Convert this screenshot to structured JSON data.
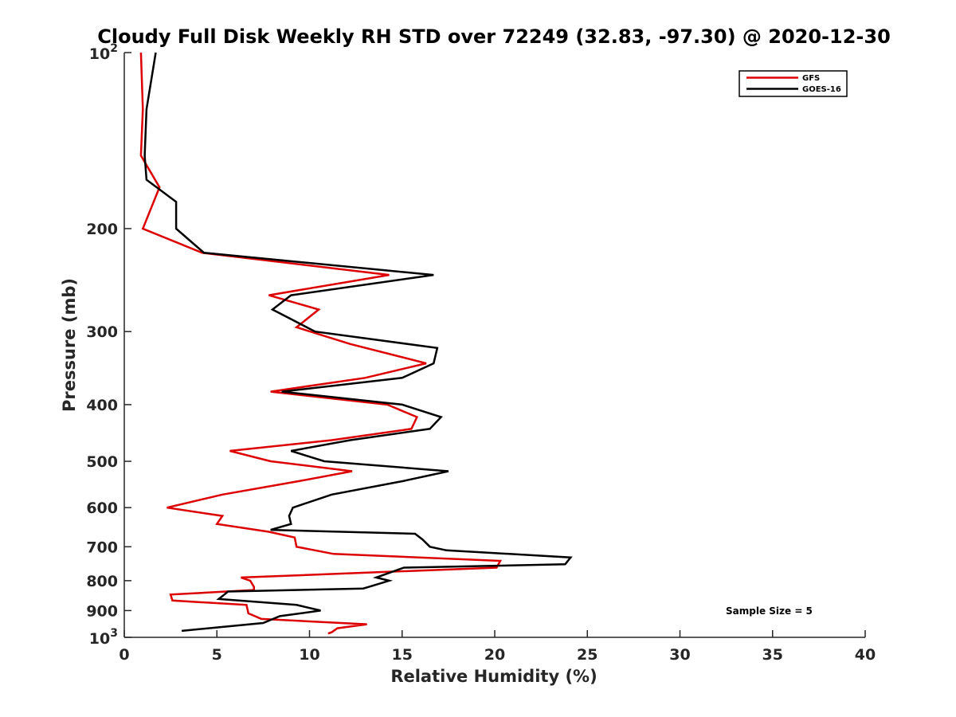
{
  "chart_data": {
    "type": "line",
    "title": "Cloudy Full Disk Weekly RH STD over 72249 (32.83, -97.30) @ 2020-12-30",
    "xlabel": "Relative Humidity (%)",
    "ylabel": "Pressure (mb)",
    "xlim": [
      0,
      40
    ],
    "ylim": [
      1000,
      100
    ],
    "yscale": "log",
    "grid": false,
    "legend_position": "top-right",
    "x_ticks": [
      0,
      5,
      10,
      15,
      20,
      25,
      30,
      35,
      40
    ],
    "x_tick_labels": [
      "0",
      "5",
      "10",
      "15",
      "20",
      "25",
      "30",
      "35",
      "40"
    ],
    "y_ticks": [
      100,
      200,
      300,
      400,
      500,
      600,
      700,
      800,
      900,
      1000
    ],
    "y_tick_labels": [
      "",
      "200",
      "300",
      "400",
      "500",
      "600",
      "700",
      "800",
      "900",
      ""
    ],
    "y_tick_base": "10",
    "y_tick_exps": [
      "2",
      "3"
    ],
    "annotation": "Sample Size = 5",
    "series": [
      {
        "name": "GFS",
        "color": "#dd0000",
        "points": [
          [
            0.9,
            100
          ],
          [
            1.0,
            125
          ],
          [
            0.9,
            150
          ],
          [
            1.9,
            170
          ],
          [
            1.0,
            200
          ],
          [
            4.2,
            220
          ],
          [
            14.3,
            240
          ],
          [
            7.8,
            260
          ],
          [
            10.5,
            275
          ],
          [
            9.3,
            295
          ],
          [
            12.2,
            315
          ],
          [
            16.3,
            340
          ],
          [
            13.0,
            360
          ],
          [
            7.9,
            380
          ],
          [
            14.2,
            400
          ],
          [
            15.8,
            420
          ],
          [
            15.5,
            440
          ],
          [
            11.2,
            460
          ],
          [
            5.7,
            480
          ],
          [
            7.9,
            500
          ],
          [
            12.3,
            520
          ],
          [
            9.5,
            540
          ],
          [
            5.3,
            570
          ],
          [
            2.3,
            600
          ],
          [
            5.3,
            620
          ],
          [
            5.0,
            640
          ],
          [
            7.8,
            660
          ],
          [
            9.2,
            675
          ],
          [
            9.3,
            700
          ],
          [
            11.3,
            720
          ],
          [
            20.3,
            740
          ],
          [
            20.1,
            760
          ],
          [
            6.3,
            790
          ],
          [
            6.8,
            800
          ],
          [
            7.0,
            820
          ],
          [
            7.0,
            830
          ],
          [
            2.5,
            845
          ],
          [
            2.6,
            865
          ],
          [
            6.6,
            880
          ],
          [
            6.7,
            910
          ],
          [
            7.4,
            930
          ],
          [
            13.1,
            950
          ],
          [
            11.5,
            965
          ],
          [
            11.2,
            980
          ],
          [
            11.0,
            985
          ]
        ]
      },
      {
        "name": "GOES-16",
        "color": "#000000",
        "points": [
          [
            1.7,
            100
          ],
          [
            1.2,
            125
          ],
          [
            1.1,
            150
          ],
          [
            1.2,
            165
          ],
          [
            2.8,
            180
          ],
          [
            2.8,
            200
          ],
          [
            4.3,
            220
          ],
          [
            16.7,
            240
          ],
          [
            9.0,
            260
          ],
          [
            8.0,
            275
          ],
          [
            10.3,
            300
          ],
          [
            16.9,
            320
          ],
          [
            16.7,
            340
          ],
          [
            15.0,
            360
          ],
          [
            8.5,
            380
          ],
          [
            15.0,
            400
          ],
          [
            17.1,
            420
          ],
          [
            16.5,
            440
          ],
          [
            12.2,
            460
          ],
          [
            9.0,
            480
          ],
          [
            10.8,
            500
          ],
          [
            17.5,
            520
          ],
          [
            15.1,
            540
          ],
          [
            11.2,
            570
          ],
          [
            9.1,
            600
          ],
          [
            8.9,
            620
          ],
          [
            9.0,
            640
          ],
          [
            7.9,
            655
          ],
          [
            15.7,
            665
          ],
          [
            16.1,
            680
          ],
          [
            16.5,
            700
          ],
          [
            17.4,
            710
          ],
          [
            24.1,
            730
          ],
          [
            23.8,
            750
          ],
          [
            15.1,
            760
          ],
          [
            13.6,
            790
          ],
          [
            14.3,
            800
          ],
          [
            13.2,
            820
          ],
          [
            12.9,
            825
          ],
          [
            5.6,
            835
          ],
          [
            5.4,
            845
          ],
          [
            5.1,
            860
          ],
          [
            9.3,
            880
          ],
          [
            10.6,
            900
          ],
          [
            8.4,
            920
          ],
          [
            7.5,
            945
          ],
          [
            3.1,
            975
          ]
        ]
      }
    ]
  }
}
